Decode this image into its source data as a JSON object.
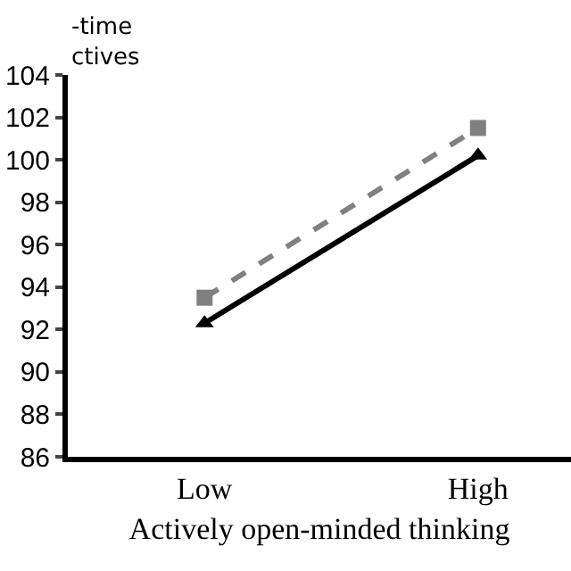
{
  "chart_data": {
    "type": "line",
    "ylabel": "-time\nctives",
    "xlabel": "Actively open-minded thinking",
    "categories": [
      "Low",
      "High"
    ],
    "series": [
      {
        "color": "#808080",
        "values": [
          93.5,
          101.5
        ],
        "line_style": "dashed",
        "marker": "square"
      },
      {
        "color": "#000000",
        "values": [
          92.3,
          100.2
        ],
        "line_style": "solid",
        "marker": "triangle"
      }
    ],
    "ylim": [
      86,
      104
    ],
    "yticks": [
      86,
      88,
      90,
      92,
      94,
      96,
      98,
      100,
      102,
      104
    ]
  }
}
